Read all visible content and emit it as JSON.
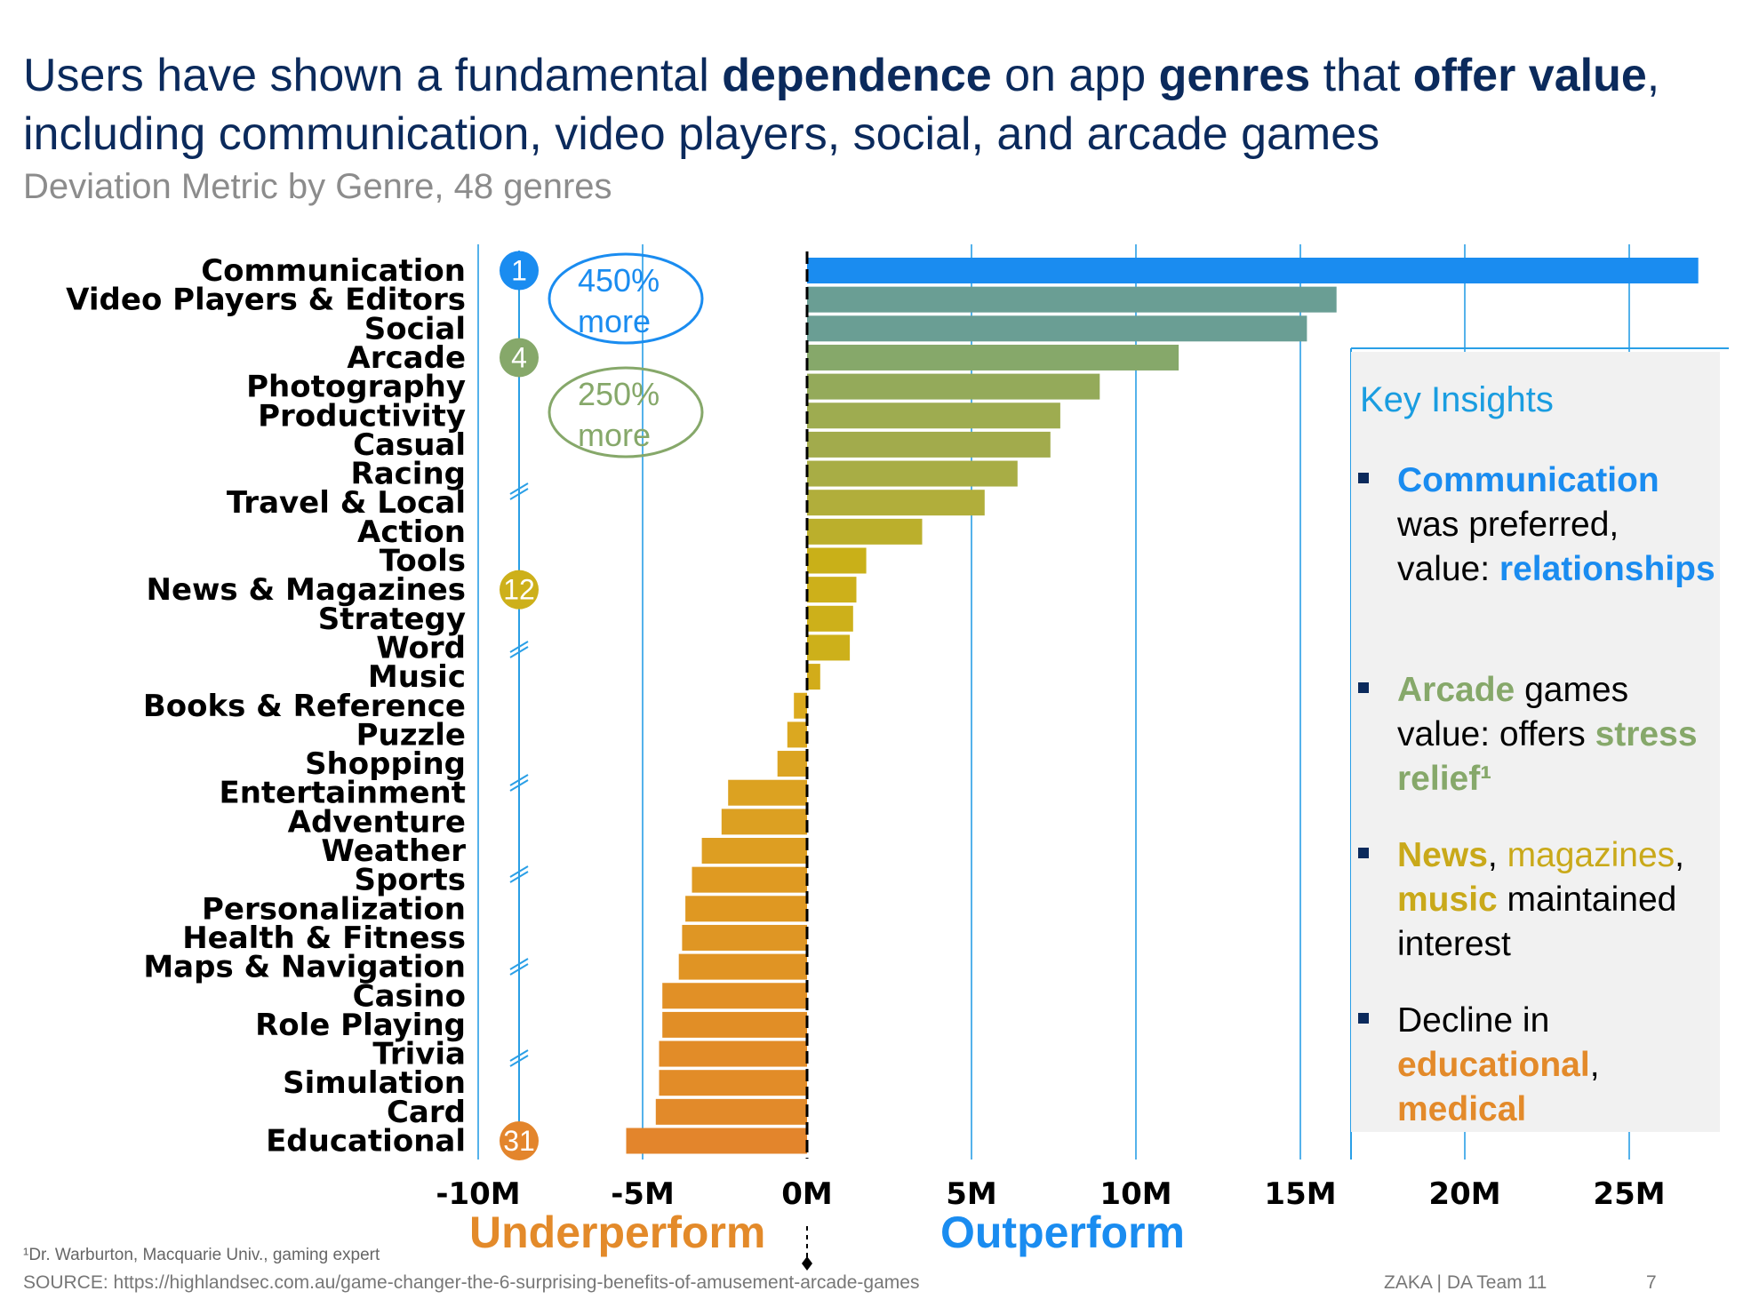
{
  "title": {
    "segments": [
      {
        "text": "Users have shown a fundamental ",
        "bold": false
      },
      {
        "text": "dependence",
        "bold": true
      },
      {
        "text": " on app ",
        "bold": false
      },
      {
        "text": "genres",
        "bold": true
      },
      {
        "text": " that ",
        "bold": false
      },
      {
        "text": "offer value",
        "bold": true
      },
      {
        "text": ", including communication, video players, social, and arcade games",
        "bold": false
      }
    ]
  },
  "subtitle": "Deviation Metric by Genre, 48 genres",
  "chart_data": {
    "type": "bar",
    "orientation": "horizontal",
    "categories": [
      "Communication",
      "Video Players & Editors",
      "Social",
      "Arcade",
      "Photography",
      "Productivity",
      "Casual",
      "Racing",
      "Travel & Local",
      "Action",
      "Tools",
      "News & Magazines",
      "Strategy",
      "Word",
      "Music",
      "Books & Reference",
      "Puzzle",
      "Shopping",
      "Entertainment",
      "Adventure",
      "Weather",
      "Sports",
      "Personalization",
      "Health & Fitness",
      "Maps & Navigation",
      "Casino",
      "Role Playing",
      "Trivia",
      "Simulation",
      "Card",
      "Educational"
    ],
    "values": [
      27.1,
      16.1,
      15.2,
      11.3,
      8.9,
      7.7,
      7.4,
      6.4,
      5.4,
      3.5,
      1.8,
      1.5,
      1.4,
      1.3,
      0.4,
      -0.4,
      -0.6,
      -0.9,
      -2.4,
      -2.6,
      -3.2,
      -3.5,
      -3.7,
      -3.8,
      -3.9,
      -4.4,
      -4.4,
      -4.5,
      -4.5,
      -4.6,
      -5.5
    ],
    "value_unit": "M",
    "xlim": [
      -10,
      28
    ],
    "xticks": [
      -10,
      -5,
      0,
      5,
      10,
      15,
      20,
      25
    ],
    "xtick_labels": [
      "-10M",
      "-5M",
      "0M",
      "5M",
      "10M",
      "15M",
      "20M",
      "25M"
    ],
    "bar_colors": [
      "#1a8cf0",
      "#6a9e94",
      "#6a9e94",
      "#86a86a",
      "#94aa5a",
      "#9eac50",
      "#a2ab4c",
      "#a8ad45",
      "#b1ae3b",
      "#bbaf2c",
      "#c9b018",
      "#cdb01a",
      "#cdb01a",
      "#cdb01a",
      "#d2ac1a",
      "#dbaa1e",
      "#dba820",
      "#dba422",
      "#dca221",
      "#dca022",
      "#dd9e22",
      "#df9a22",
      "#df9822",
      "#df9624",
      "#e09424",
      "#e19026",
      "#e18e26",
      "#e28c28",
      "#e28c28",
      "#e28a2a",
      "#e3852c"
    ],
    "grid": true,
    "rank_markers": [
      {
        "label": "1",
        "category_index": 0,
        "color": "#1a8cf0"
      },
      {
        "label": "4",
        "category_index": 3,
        "color": "#86a86a"
      },
      {
        "label": "12",
        "category_index": 11,
        "color": "#cdb01a"
      },
      {
        "label": "31",
        "category_index": 30,
        "color": "#e3852c"
      }
    ],
    "annotations": [
      {
        "text": [
          "450%",
          "more"
        ],
        "color": "#1a8cf0"
      },
      {
        "text": [
          "250%",
          "more"
        ],
        "color": "#86a86a"
      }
    ],
    "under_label": "Underperform",
    "over_label": "Outperform"
  },
  "insights": {
    "title": "Key Insights",
    "items": [
      [
        {
          "t": "Communication",
          "c": "c-blue"
        },
        {
          "t": " was preferred, value: ",
          "c": ""
        },
        {
          "t": "relationships",
          "c": "c-blue"
        }
      ],
      [
        {
          "t": "Arcade",
          "c": "c-green"
        },
        {
          "t": " games value: offers ",
          "c": ""
        },
        {
          "t": "stress relief¹",
          "c": "c-green"
        }
      ],
      [
        {
          "t": "News",
          "c": "c-gold"
        },
        {
          "t": ", ",
          "c": ""
        },
        {
          "t": "magazines",
          "c": "c-gold-n"
        },
        {
          "t": ", ",
          "c": ""
        },
        {
          "t": "music",
          "c": "c-gold"
        },
        {
          "t": " maintained interest",
          "c": ""
        }
      ],
      [
        {
          "t": "Decline in ",
          "c": ""
        },
        {
          "t": "educational",
          "c": "c-orange"
        },
        {
          "t": ", ",
          "c": ""
        },
        {
          "t": "medical",
          "c": "c-orange"
        }
      ]
    ]
  },
  "footnote": "¹Dr. Warburton, Macquarie Univ., gaming expert",
  "source": "SOURCE: https://highlandsec.com.au/game-changer-the-6-surprising-benefits-of-amusement-arcade-games",
  "footer_team": "ZAKA |  DA Team 11",
  "page_number": "7"
}
